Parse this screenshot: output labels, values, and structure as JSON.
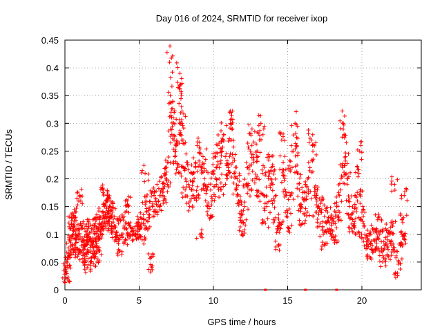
{
  "chart_data": {
    "type": "scatter",
    "title": "Day 016 of 2024, SRMTID for receiver ixop",
    "xlabel": "GPS time / hours",
    "ylabel": "SRMTID / TECUs",
    "xlim": [
      0,
      24
    ],
    "ylim": [
      0,
      0.45
    ],
    "xticks": [
      0,
      5,
      10,
      15,
      20
    ],
    "yticks": [
      0,
      0.05,
      0.1,
      0.15,
      0.2,
      0.25,
      0.3,
      0.35,
      0.4,
      0.45
    ],
    "xtick_labels": [
      "0",
      "5",
      "10",
      "15",
      "20"
    ],
    "ytick_labels": [
      "0",
      "0.05",
      "0.1",
      "0.15",
      "0.2",
      "0.25",
      "0.3",
      "0.35",
      "0.4",
      "0.45"
    ],
    "grid": true,
    "marker": "+",
    "color": "#ff0000",
    "series": [
      {
        "name": "SRMTID",
        "points": [
          [
            0.05,
            0.03
          ],
          [
            0.1,
            0.05
          ],
          [
            0.15,
            0.02
          ],
          [
            0.2,
            0.04
          ],
          [
            0.25,
            0.06
          ],
          [
            0.3,
            0.09
          ],
          [
            0.35,
            0.07
          ],
          [
            0.4,
            0.11
          ],
          [
            0.45,
            0.13
          ],
          [
            0.5,
            0.08
          ],
          [
            0.55,
            0.1
          ],
          [
            0.6,
            0.12
          ],
          [
            0.65,
            0.07
          ],
          [
            0.7,
            0.14
          ],
          [
            0.75,
            0.09
          ],
          [
            0.8,
            0.11
          ],
          [
            0.85,
            0.06
          ],
          [
            0.9,
            0.1
          ],
          [
            0.95,
            0.16
          ],
          [
            1.0,
            0.17
          ],
          [
            1.05,
            0.12
          ],
          [
            1.1,
            0.08
          ],
          [
            1.15,
            0.07
          ],
          [
            1.2,
            0.05
          ],
          [
            1.25,
            0.09
          ],
          [
            1.3,
            0.11
          ],
          [
            1.35,
            0.08
          ],
          [
            1.4,
            0.06
          ],
          [
            1.45,
            0.1
          ],
          [
            1.5,
            0.04
          ],
          [
            1.55,
            0.07
          ],
          [
            1.6,
            0.12
          ],
          [
            1.65,
            0.09
          ],
          [
            1.7,
            0.05
          ],
          [
            1.75,
            0.08
          ],
          [
            1.8,
            0.11
          ],
          [
            1.85,
            0.06
          ],
          [
            1.9,
            0.09
          ],
          [
            1.95,
            0.07
          ],
          [
            2.0,
            0.1
          ],
          [
            2.05,
            0.12
          ],
          [
            2.1,
            0.08
          ],
          [
            2.15,
            0.05
          ],
          [
            2.2,
            0.11
          ],
          [
            2.25,
            0.09
          ],
          [
            2.3,
            0.13
          ],
          [
            2.35,
            0.07
          ],
          [
            2.4,
            0.1
          ],
          [
            2.45,
            0.12
          ],
          [
            2.5,
            0.14
          ],
          [
            2.55,
            0.11
          ],
          [
            2.6,
            0.18
          ],
          [
            2.65,
            0.15
          ],
          [
            2.7,
            0.12
          ],
          [
            2.75,
            0.16
          ],
          [
            2.8,
            0.13
          ],
          [
            2.85,
            0.17
          ],
          [
            2.9,
            0.14
          ],
          [
            2.95,
            0.11
          ],
          [
            3.0,
            0.15
          ],
          [
            3.05,
            0.13
          ],
          [
            3.1,
            0.16
          ],
          [
            3.15,
            0.12
          ],
          [
            3.2,
            0.14
          ],
          [
            3.3,
            0.11
          ],
          [
            3.4,
            0.1
          ],
          [
            3.5,
            0.09
          ],
          [
            3.6,
            0.12
          ],
          [
            3.7,
            0.07
          ],
          [
            3.8,
            0.1
          ],
          [
            3.9,
            0.13
          ],
          [
            4.0,
            0.11
          ],
          [
            4.1,
            0.09
          ],
          [
            4.2,
            0.16
          ],
          [
            4.25,
            0.15
          ],
          [
            4.3,
            0.12
          ],
          [
            4.4,
            0.1
          ],
          [
            4.5,
            0.11
          ],
          [
            4.6,
            0.09
          ],
          [
            4.7,
            0.1
          ],
          [
            4.8,
            0.12
          ],
          [
            4.9,
            0.1
          ],
          [
            5.0,
            0.11
          ],
          [
            5.1,
            0.13
          ],
          [
            5.2,
            0.09
          ],
          [
            5.3,
            0.12
          ],
          [
            5.4,
            0.21
          ],
          [
            5.45,
            0.16
          ],
          [
            5.5,
            0.14
          ],
          [
            5.6,
            0.11
          ],
          [
            5.7,
            0.13
          ],
          [
            5.8,
            0.06
          ],
          [
            5.85,
            0.04
          ],
          [
            5.9,
            0.15
          ],
          [
            6.0,
            0.17
          ],
          [
            6.1,
            0.14
          ],
          [
            6.2,
            0.19
          ],
          [
            6.3,
            0.16
          ],
          [
            6.4,
            0.15
          ],
          [
            6.5,
            0.18
          ],
          [
            6.6,
            0.17
          ],
          [
            6.7,
            0.21
          ],
          [
            6.8,
            0.2
          ],
          [
            6.9,
            0.19
          ],
          [
            7.0,
            0.23
          ],
          [
            7.05,
            0.41
          ],
          [
            7.1,
            0.35
          ],
          [
            7.15,
            0.32
          ],
          [
            7.2,
            0.28
          ],
          [
            7.3,
            0.31
          ],
          [
            7.35,
            0.27
          ],
          [
            7.4,
            0.24
          ],
          [
            7.5,
            0.26
          ],
          [
            7.6,
            0.22
          ],
          [
            7.7,
            0.28
          ],
          [
            7.75,
            0.39
          ],
          [
            7.8,
            0.37
          ],
          [
            7.85,
            0.33
          ],
          [
            7.9,
            0.3
          ],
          [
            7.95,
            0.27
          ],
          [
            8.0,
            0.22
          ],
          [
            8.1,
            0.18
          ],
          [
            8.2,
            0.23
          ],
          [
            8.3,
            0.19
          ],
          [
            8.4,
            0.15
          ],
          [
            8.5,
            0.21
          ],
          [
            8.6,
            0.17
          ],
          [
            8.7,
            0.2
          ],
          [
            8.8,
            0.23
          ],
          [
            8.9,
            0.26
          ],
          [
            9.0,
            0.17
          ],
          [
            9.1,
            0.1
          ],
          [
            9.2,
            0.22
          ],
          [
            9.3,
            0.24
          ],
          [
            9.4,
            0.2
          ],
          [
            9.5,
            0.18
          ],
          [
            9.6,
            0.15
          ],
          [
            9.7,
            0.19
          ],
          [
            9.8,
            0.13
          ],
          [
            9.9,
            0.16
          ],
          [
            10.0,
            0.21
          ],
          [
            10.1,
            0.24
          ],
          [
            10.2,
            0.19
          ],
          [
            10.3,
            0.26
          ],
          [
            10.4,
            0.22
          ],
          [
            10.5,
            0.18
          ],
          [
            10.6,
            0.25
          ],
          [
            10.7,
            0.28
          ],
          [
            10.8,
            0.24
          ],
          [
            10.9,
            0.2
          ],
          [
            11.0,
            0.22
          ],
          [
            11.1,
            0.32
          ],
          [
            11.15,
            0.3
          ],
          [
            11.2,
            0.27
          ],
          [
            11.3,
            0.23
          ],
          [
            11.4,
            0.21
          ],
          [
            11.5,
            0.18
          ],
          [
            11.6,
            0.2
          ],
          [
            11.7,
            0.16
          ],
          [
            11.8,
            0.13
          ],
          [
            11.9,
            0.1
          ],
          [
            12.0,
            0.12
          ],
          [
            12.1,
            0.15
          ],
          [
            12.2,
            0.19
          ],
          [
            12.3,
            0.22
          ],
          [
            12.4,
            0.18
          ],
          [
            12.5,
            0.25
          ],
          [
            12.6,
            0.29
          ],
          [
            12.7,
            0.23
          ],
          [
            12.8,
            0.2
          ],
          [
            12.9,
            0.17
          ],
          [
            13.0,
            0.24
          ],
          [
            13.1,
            0.27
          ],
          [
            13.2,
            0.3
          ],
          [
            13.3,
            0.21
          ],
          [
            13.4,
            0.17
          ],
          [
            13.5,
            0.12
          ],
          [
            13.6,
            0.15
          ],
          [
            13.7,
            0.2
          ],
          [
            13.8,
            0.24
          ],
          [
            13.9,
            0.22
          ],
          [
            14.0,
            0.19
          ],
          [
            14.1,
            0.16
          ],
          [
            14.2,
            0.13
          ],
          [
            14.3,
            0.11
          ],
          [
            14.4,
            0.08
          ],
          [
            14.5,
            0.12
          ],
          [
            14.6,
            0.27
          ],
          [
            14.7,
            0.23
          ],
          [
            14.8,
            0.2
          ],
          [
            14.9,
            0.17
          ],
          [
            15.0,
            0.14
          ],
          [
            15.1,
            0.11
          ],
          [
            15.2,
            0.17
          ],
          [
            15.3,
            0.22
          ],
          [
            15.4,
            0.25
          ],
          [
            15.5,
            0.3
          ],
          [
            15.6,
            0.26
          ],
          [
            15.7,
            0.21
          ],
          [
            15.8,
            0.18
          ],
          [
            15.9,
            0.15
          ],
          [
            16.0,
            0.12
          ],
          [
            16.1,
            0.16
          ],
          [
            16.2,
            0.19
          ],
          [
            16.3,
            0.14
          ],
          [
            16.4,
            0.18
          ],
          [
            16.5,
            0.22
          ],
          [
            16.6,
            0.27
          ],
          [
            16.7,
            0.25
          ],
          [
            16.8,
            0.17
          ],
          [
            16.9,
            0.14
          ],
          [
            17.0,
            0.18
          ],
          [
            17.1,
            0.15
          ],
          [
            17.2,
            0.12
          ],
          [
            17.3,
            0.16
          ],
          [
            17.4,
            0.1
          ],
          [
            17.5,
            0.08
          ],
          [
            17.6,
            0.12
          ],
          [
            17.7,
            0.14
          ],
          [
            17.8,
            0.11
          ],
          [
            17.9,
            0.13
          ],
          [
            18.0,
            0.1
          ],
          [
            18.1,
            0.12
          ],
          [
            18.2,
            0.09
          ],
          [
            18.3,
            0.15
          ],
          [
            18.4,
            0.13
          ],
          [
            18.5,
            0.17
          ],
          [
            18.6,
            0.2
          ],
          [
            18.7,
            0.22
          ],
          [
            18.75,
            0.3
          ],
          [
            18.8,
            0.28
          ],
          [
            18.9,
            0.24
          ],
          [
            19.0,
            0.2
          ],
          [
            19.1,
            0.16
          ],
          [
            19.2,
            0.13
          ],
          [
            19.3,
            0.11
          ],
          [
            19.4,
            0.14
          ],
          [
            19.5,
            0.12
          ],
          [
            19.6,
            0.1
          ],
          [
            19.7,
            0.16
          ],
          [
            19.8,
            0.21
          ],
          [
            19.85,
            0.25
          ],
          [
            19.9,
            0.18
          ],
          [
            20.0,
            0.14
          ],
          [
            20.1,
            0.12
          ],
          [
            20.2,
            0.1
          ],
          [
            20.3,
            0.08
          ],
          [
            20.4,
            0.09
          ],
          [
            20.5,
            0.06
          ],
          [
            20.6,
            0.1
          ],
          [
            20.7,
            0.08
          ],
          [
            20.8,
            0.11
          ],
          [
            20.9,
            0.07
          ],
          [
            21.0,
            0.09
          ],
          [
            21.1,
            0.13
          ],
          [
            21.2,
            0.1
          ],
          [
            21.3,
            0.07
          ],
          [
            21.4,
            0.05
          ],
          [
            21.5,
            0.08
          ],
          [
            21.6,
            0.11
          ],
          [
            21.7,
            0.09
          ],
          [
            21.8,
            0.06
          ],
          [
            21.9,
            0.1
          ],
          [
            22.0,
            0.08
          ],
          [
            22.1,
            0.12
          ],
          [
            22.2,
            0.19
          ],
          [
            22.3,
            0.07
          ],
          [
            22.4,
            0.03
          ],
          [
            22.5,
            0.05
          ],
          [
            22.6,
            0.08
          ],
          [
            22.7,
            0.1
          ],
          [
            22.8,
            0.13
          ],
          [
            22.85,
            0.17
          ],
          [
            22.9,
            0.09
          ]
        ]
      }
    ],
    "zero_markers_x": [
      13.5,
      16.2,
      18.3
    ]
  }
}
